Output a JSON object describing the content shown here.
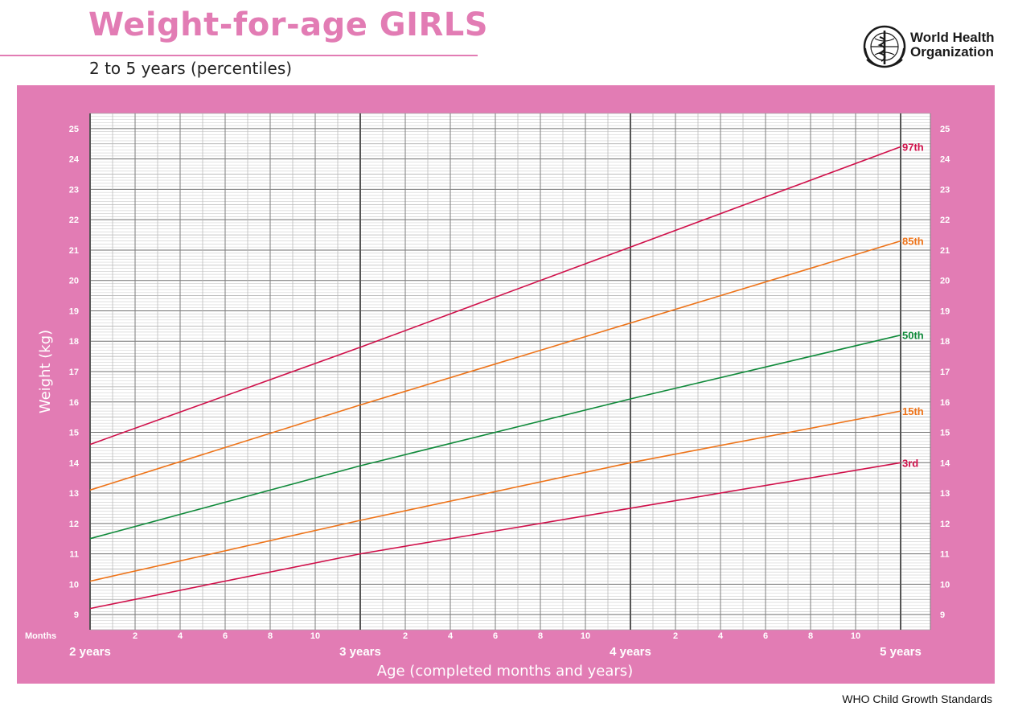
{
  "header": {
    "title": "Weight-for-age GIRLS",
    "subtitle": "2 to 5 years (percentiles)",
    "org_line1": "World Health",
    "org_line2": "Organization"
  },
  "footer": {
    "text": "WHO Child Growth Standards"
  },
  "colors": {
    "panel": "#e27cb4",
    "p97": "#d0104a",
    "p85": "#ee7318",
    "p50": "#0f8a3a",
    "p15": "#ee7318",
    "p3": "#d0104a"
  },
  "chart_data": {
    "type": "line",
    "title": "Weight-for-age GIRLS",
    "subtitle": "2 to 5 years (percentiles)",
    "xlabel": "Age (completed months and years)",
    "ylabel": "Weight (kg)",
    "x_unit": "months",
    "xlim": [
      24,
      60
    ],
    "ylim": [
      8.5,
      25.5
    ],
    "y_ticks": [
      9,
      10,
      11,
      12,
      13,
      14,
      15,
      16,
      17,
      18,
      19,
      20,
      21,
      22,
      23,
      24,
      25
    ],
    "x_month_label": "Months",
    "x_minor_labels": [
      "2",
      "4",
      "6",
      "8",
      "10"
    ],
    "x_year_labels": [
      "2 years",
      "3 years",
      "4 years",
      "5 years"
    ],
    "grid": true,
    "series": [
      {
        "name": "97th",
        "color": "#d0104a",
        "x": [
          24,
          36,
          48,
          60
        ],
        "values": [
          14.6,
          17.8,
          21.1,
          24.4
        ]
      },
      {
        "name": "85th",
        "color": "#ee7318",
        "x": [
          24,
          36,
          48,
          60
        ],
        "values": [
          13.1,
          15.9,
          18.6,
          21.3
        ]
      },
      {
        "name": "50th",
        "color": "#0f8a3a",
        "x": [
          24,
          36,
          48,
          60
        ],
        "values": [
          11.5,
          13.9,
          16.1,
          18.2
        ]
      },
      {
        "name": "15th",
        "color": "#ee7318",
        "x": [
          24,
          36,
          48,
          60
        ],
        "values": [
          10.1,
          12.1,
          14.0,
          15.7
        ]
      },
      {
        "name": "3rd",
        "color": "#d0104a",
        "x": [
          24,
          36,
          48,
          60
        ],
        "values": [
          9.2,
          11.0,
          12.5,
          14.0
        ]
      }
    ]
  }
}
